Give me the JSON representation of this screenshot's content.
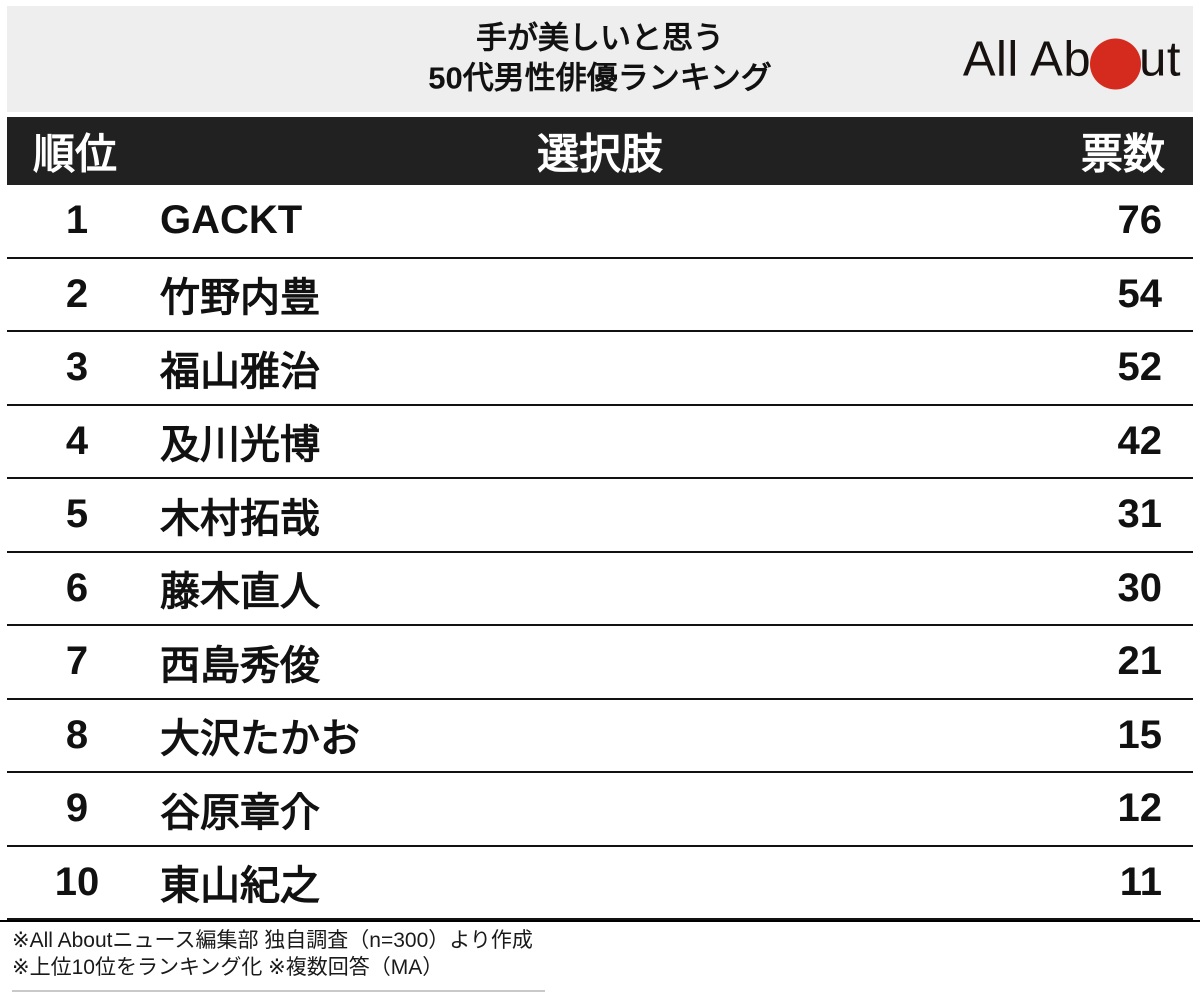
{
  "header": {
    "title_line1": "手が美しいと思う",
    "title_line2": "50代男性俳優ランキング",
    "logo": {
      "name": "All About",
      "text_before_dot": "All Ab",
      "text_after_dot": "ut",
      "dot_color": "#d52b1e"
    }
  },
  "table": {
    "columns": {
      "rank": "順位",
      "choice": "選択肢",
      "votes": "票数"
    },
    "rows": [
      {
        "rank": "1",
        "name": "GACKT",
        "votes": "76"
      },
      {
        "rank": "2",
        "name": "竹野内豊",
        "votes": "54"
      },
      {
        "rank": "3",
        "name": "福山雅治",
        "votes": "52"
      },
      {
        "rank": "4",
        "name": "及川光博",
        "votes": "42"
      },
      {
        "rank": "5",
        "name": "木村拓哉",
        "votes": "31"
      },
      {
        "rank": "6",
        "name": "藤木直人",
        "votes": "30"
      },
      {
        "rank": "7",
        "name": "西島秀俊",
        "votes": "21"
      },
      {
        "rank": "8",
        "name": "大沢たかお",
        "votes": "15"
      },
      {
        "rank": "9",
        "name": "谷原章介",
        "votes": "12"
      },
      {
        "rank": "10",
        "name": "東山紀之",
        "votes": "11"
      }
    ]
  },
  "footer": {
    "note1": "※All Aboutニュース編集部 独自調査（n=300）より作成",
    "note2": "※上位10位をランキング化 ※複数回答（MA）"
  },
  "colors": {
    "title_band_bg": "#eeeeee",
    "table_header_bg": "#212121",
    "row_border": "#111111",
    "logo_red": "#d52b1e"
  },
  "chart_data": {
    "type": "table",
    "title": "手が美しいと思う50代男性俳優ランキング",
    "columns": [
      "順位",
      "選択肢",
      "票数"
    ],
    "categories": [
      "GACKT",
      "竹野内豊",
      "福山雅治",
      "及川光博",
      "木村拓哉",
      "藤木直人",
      "西島秀俊",
      "大沢たかお",
      "谷原章介",
      "東山紀之"
    ],
    "values": [
      76,
      54,
      52,
      42,
      31,
      30,
      21,
      15,
      12,
      11
    ],
    "notes": [
      "※All Aboutニュース編集部 独自調査（n=300）より作成",
      "※上位10位をランキング化 ※複数回答（MA）"
    ]
  }
}
